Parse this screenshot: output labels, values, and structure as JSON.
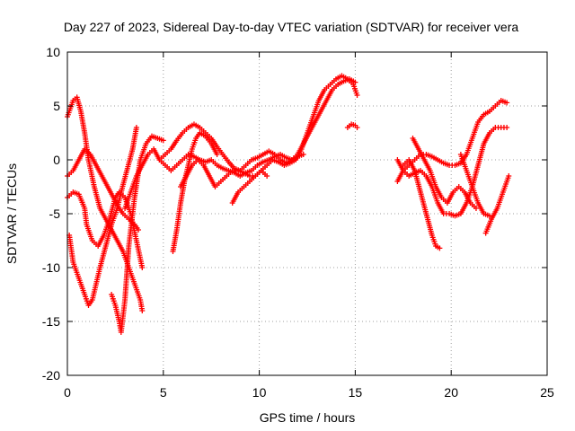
{
  "chart_data": {
    "type": "scatter",
    "title": "Day 227 of 2023, Sidereal Day-to-day VTEC variation (SDTVAR) for receiver vera",
    "xlabel": "GPS time / hours",
    "ylabel": "SDTVAR / TECUs",
    "xlim": [
      0,
      25
    ],
    "ylim": [
      -20,
      10
    ],
    "xticks": [
      0,
      5,
      10,
      15,
      20,
      25
    ],
    "yticks": [
      -20,
      -15,
      -10,
      -5,
      0,
      5,
      10
    ],
    "xtick_labels": [
      "0",
      "5",
      "10",
      "15",
      "20",
      "25"
    ],
    "ytick_labels": [
      "-20",
      "-15",
      "-10",
      "-5",
      "0",
      "5",
      "10"
    ],
    "grid": true,
    "legend": "none",
    "marker": "+",
    "color": "#ff0000",
    "series": [
      {
        "x": [
          0.0,
          0.3,
          0.5,
          0.7,
          0.9,
          1.1,
          1.4,
          1.7,
          2.0,
          2.3,
          2.6,
          2.9,
          3.2,
          3.5,
          3.8,
          3.9
        ],
        "y": [
          4.0,
          5.5,
          5.8,
          4.5,
          2.5,
          0.0,
          -2.5,
          -4.5,
          -5.5,
          -6.5,
          -7.5,
          -8.5,
          -10.0,
          -11.5,
          -13.0,
          -14.0
        ]
      },
      {
        "x": [
          0.1,
          0.3,
          0.6,
          0.9,
          1.1,
          1.3,
          1.5,
          1.7,
          2.0,
          2.3,
          2.6,
          2.8,
          3.1,
          3.4,
          3.6
        ],
        "y": [
          -7.0,
          -9.5,
          -11.0,
          -12.5,
          -13.5,
          -13.0,
          -11.5,
          -10.0,
          -8.0,
          -6.0,
          -4.5,
          -3.0,
          -1.0,
          1.0,
          3.0
        ]
      },
      {
        "x": [
          0.0,
          0.3,
          0.6,
          0.9,
          1.0,
          1.3,
          1.6,
          1.9,
          2.2,
          2.5,
          2.7,
          3.0,
          3.3,
          3.6,
          3.9
        ],
        "y": [
          -3.5,
          -3.0,
          -3.2,
          -4.5,
          -6.0,
          -7.5,
          -8.0,
          -7.0,
          -5.5,
          -3.5,
          -3.0,
          -3.5,
          -5.0,
          -7.5,
          -10.0
        ]
      },
      {
        "x": [
          0.0,
          0.3,
          0.6,
          0.9,
          1.2,
          1.5,
          1.8,
          2.1,
          2.4,
          2.7,
          2.9,
          3.2,
          3.5,
          3.7
        ],
        "y": [
          -1.5,
          -1.0,
          0.0,
          1.0,
          0.5,
          -0.5,
          -1.5,
          -2.5,
          -3.5,
          -4.5,
          -5.0,
          -5.5,
          -6.0,
          -6.5
        ]
      },
      {
        "x": [
          2.3,
          2.5,
          2.7,
          2.8,
          3.0,
          3.2,
          3.5,
          3.8,
          4.1,
          4.4,
          4.7,
          5.0
        ],
        "y": [
          -12.5,
          -13.5,
          -15.0,
          -16.0,
          -13.0,
          -8.0,
          -3.5,
          0.0,
          1.5,
          2.2,
          2.0,
          1.8
        ]
      },
      {
        "x": [
          3.0,
          3.3,
          3.6,
          3.9,
          4.2,
          4.5,
          4.8,
          5.1,
          5.4,
          5.7,
          6.0,
          6.3,
          6.6,
          6.9,
          7.2,
          7.5,
          7.8,
          8.1,
          8.4,
          8.7,
          9.0,
          9.3,
          9.6,
          9.9,
          10.2,
          10.5,
          10.8,
          11.1,
          11.4,
          11.7,
          12.0,
          12.3
        ],
        "y": [
          -4.5,
          -3.0,
          -1.5,
          -0.5,
          0.5,
          1.0,
          0.0,
          -0.5,
          -1.0,
          -0.5,
          0.0,
          0.5,
          0.3,
          0.0,
          -0.2,
          0.0,
          -0.5,
          -0.8,
          -1.0,
          -1.2,
          -1.5,
          -1.2,
          -1.0,
          -0.5,
          -0.2,
          0.0,
          0.3,
          0.5,
          0.2,
          0.0,
          0.3,
          0.5
        ]
      },
      {
        "x": [
          4.8,
          5.1,
          5.4,
          5.7,
          6.0,
          6.3,
          6.6,
          6.9,
          7.2,
          7.5,
          7.8,
          8.1,
          8.4,
          8.7,
          9.0,
          9.3,
          9.6,
          9.9,
          10.2,
          10.5,
          10.8,
          11.1,
          11.4,
          11.7,
          12.0,
          12.3,
          12.6,
          12.9,
          13.2,
          13.5,
          13.8,
          14.1,
          14.4,
          14.7,
          15.0
        ],
        "y": [
          0.0,
          0.5,
          1.0,
          1.8,
          2.5,
          3.0,
          3.3,
          3.0,
          2.5,
          2.0,
          1.2,
          0.5,
          -0.2,
          -0.8,
          -1.0,
          -0.5,
          0.0,
          0.2,
          0.5,
          0.8,
          0.5,
          0.0,
          -0.3,
          0.0,
          0.5,
          1.5,
          2.5,
          3.5,
          4.5,
          5.5,
          6.5,
          7.0,
          7.3,
          7.5,
          7.2
        ]
      },
      {
        "x": [
          5.5,
          5.7,
          5.9,
          6.1,
          6.3,
          6.5,
          6.7,
          6.9,
          7.2,
          7.5,
          7.8
        ],
        "y": [
          -8.5,
          -6.5,
          -4.0,
          -2.0,
          -0.5,
          1.0,
          2.0,
          2.5,
          2.2,
          1.5,
          0.5
        ]
      },
      {
        "x": [
          5.9,
          6.2,
          6.5,
          6.8,
          7.1,
          7.4,
          7.7,
          8.0,
          8.3,
          8.6,
          8.9,
          9.2,
          9.5,
          9.8,
          10.1,
          10.4,
          10.7,
          11.0,
          11.3,
          11.6,
          11.9,
          12.2,
          12.5,
          12.8,
          13.1,
          13.4,
          13.7,
          14.0,
          14.3,
          14.6,
          14.9,
          15.1
        ],
        "y": [
          -2.5,
          -1.5,
          -0.5,
          0.0,
          -0.5,
          -1.5,
          -2.5,
          -2.0,
          -1.5,
          -1.0,
          -1.0,
          -1.2,
          -1.5,
          -1.5,
          -1.0,
          -0.5,
          0.0,
          -0.2,
          -0.5,
          -0.3,
          0.0,
          1.0,
          2.5,
          4.0,
          5.5,
          6.5,
          7.0,
          7.5,
          7.8,
          7.5,
          7.0,
          6.0
        ]
      },
      {
        "x": [
          8.6,
          8.9,
          9.2,
          9.5,
          9.8,
          10.1,
          10.4
        ],
        "y": [
          -4.0,
          -3.0,
          -2.5,
          -2.0,
          -1.5,
          -1.0,
          -1.5
        ]
      },
      {
        "x": [
          14.6,
          14.8,
          15.0,
          15.1
        ],
        "y": [
          3.0,
          3.3,
          3.2,
          3.0
        ]
      },
      {
        "x": [
          17.2,
          17.5,
          17.8,
          18.1,
          18.4,
          18.7,
          19.0,
          19.3,
          19.6,
          19.9,
          20.2,
          20.5,
          20.8,
          21.1,
          21.4,
          21.7,
          22.0,
          22.3,
          22.6,
          22.9
        ],
        "y": [
          0.0,
          -1.0,
          -1.5,
          -1.2,
          -1.0,
          -1.5,
          -2.5,
          -4.0,
          -5.0,
          -5.0,
          -5.2,
          -5.0,
          -4.0,
          -2.5,
          -0.5,
          1.5,
          2.5,
          3.0,
          3.0,
          3.0
        ]
      },
      {
        "x": [
          17.2,
          17.5,
          17.8,
          18.1,
          18.4,
          18.7,
          19.0,
          19.3,
          19.6,
          19.9,
          20.2,
          20.5,
          20.8,
          21.1,
          21.4,
          21.7,
          22.0,
          22.3,
          22.6,
          22.9
        ],
        "y": [
          -2.0,
          -1.0,
          -0.5,
          0.0,
          0.5,
          0.5,
          0.3,
          0.0,
          -0.3,
          -0.5,
          -0.5,
          -0.3,
          0.5,
          2.0,
          3.5,
          4.2,
          4.5,
          5.0,
          5.5,
          5.3
        ]
      },
      {
        "x": [
          17.5,
          17.8,
          18.1,
          18.4,
          18.7,
          19.0,
          19.2,
          19.4
        ],
        "y": [
          -0.5,
          0.0,
          -1.0,
          -3.0,
          -5.0,
          -7.0,
          -8.0,
          -8.2
        ]
      },
      {
        "x": [
          18.0,
          18.3,
          18.6,
          18.9,
          19.2,
          19.5,
          19.8,
          20.1,
          20.4,
          20.7,
          21.0,
          21.3
        ],
        "y": [
          2.0,
          1.0,
          0.0,
          -1.0,
          -2.5,
          -3.5,
          -4.0,
          -3.0,
          -2.5,
          -3.0,
          -4.0,
          -4.5
        ]
      },
      {
        "x": [
          20.5,
          20.8,
          21.1,
          21.4,
          21.7,
          22.0
        ],
        "y": [
          0.5,
          -1.0,
          -2.5,
          -4.0,
          -5.0,
          -5.2
        ]
      },
      {
        "x": [
          21.8,
          22.1,
          22.4,
          22.7,
          23.0
        ],
        "y": [
          -6.8,
          -5.5,
          -4.5,
          -3.0,
          -1.5
        ]
      }
    ]
  }
}
